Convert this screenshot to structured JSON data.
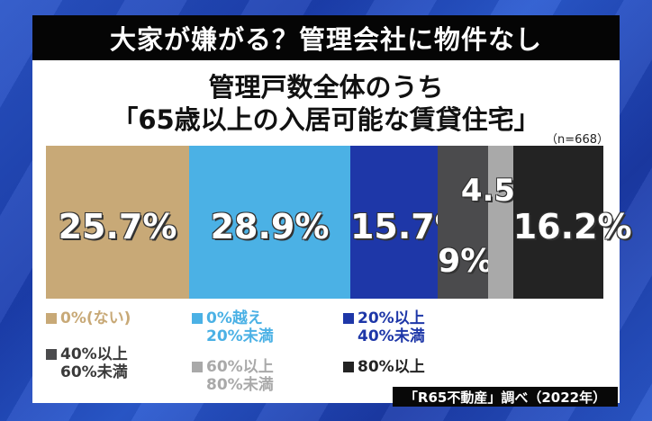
{
  "header": {
    "title": "大家が嫌がる？管理会社に物件なし"
  },
  "chart_data": {
    "type": "bar",
    "orientation": "horizontal-stacked-100",
    "title": "管理戸数全体のうち",
    "subtitle": "「65歳以上の入居可能な賃貸住宅」",
    "note": "（n=668）",
    "categories": [
      "0%(ない)",
      "0%越え 20%未満",
      "20%以上 40%未満",
      "40%以上 60%未満",
      "60%以上 80%未満",
      "80%以上"
    ],
    "values": [
      25.7,
      28.9,
      15.7,
      9,
      4.5,
      16.2
    ],
    "value_labels": [
      "25.7%",
      "28.9%",
      "15.7%",
      "9%",
      "4.5%",
      "16.2%"
    ],
    "colors": [
      "#c8a977",
      "#4bb1e5",
      "#1e37a8",
      "#4b4b4d",
      "#a9a9a9",
      "#232323"
    ],
    "legend": [
      {
        "line1": "0%(ない)",
        "line2": ""
      },
      {
        "line1": "0%越え",
        "line2": "20%未満"
      },
      {
        "line1": "20%以上",
        "line2": "40%未満"
      },
      {
        "line1": "40%以上",
        "line2": "60%未満"
      },
      {
        "line1": "60%以上",
        "line2": "80%未満"
      },
      {
        "line1": "80%以上",
        "line2": ""
      }
    ]
  },
  "source": "「R65不動産」調べ（2022年）"
}
